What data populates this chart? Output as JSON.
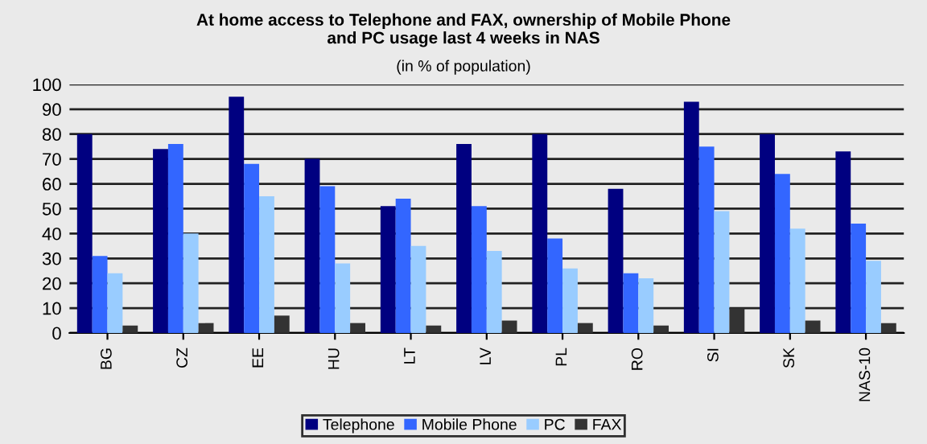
{
  "chart_data": {
    "type": "bar",
    "title": "At home access to Telephone and FAX, ownership of Mobile Phone\nand PC usage last 4 weeks in NAS",
    "subtitle": "(in % of population)",
    "categories": [
      "BG",
      "CZ",
      "EE",
      "HU",
      "LT",
      "LV",
      "PL",
      "RO",
      "SI",
      "SK",
      "NAS-10"
    ],
    "series": [
      {
        "name": "Telephone",
        "color": "#000080",
        "values": [
          80,
          74,
          95,
          70,
          51,
          76,
          80,
          58,
          93,
          80,
          73
        ]
      },
      {
        "name": "Mobile Phone",
        "color": "#3366ff",
        "values": [
          31,
          76,
          68,
          59,
          54,
          51,
          38,
          24,
          75,
          64,
          44
        ]
      },
      {
        "name": "PC",
        "color": "#99ccff",
        "values": [
          24,
          40,
          55,
          28,
          35,
          33,
          26,
          22,
          49,
          42,
          29
        ]
      },
      {
        "name": "FAX",
        "color": "#333333",
        "values": [
          3,
          4,
          7,
          4,
          3,
          5,
          4,
          3,
          10,
          5,
          4
        ]
      }
    ],
    "ylim": [
      0,
      100
    ],
    "yticks": [
      0,
      10,
      20,
      30,
      40,
      50,
      60,
      70,
      80,
      90,
      100
    ],
    "grid": "y",
    "legend": "bottom"
  }
}
